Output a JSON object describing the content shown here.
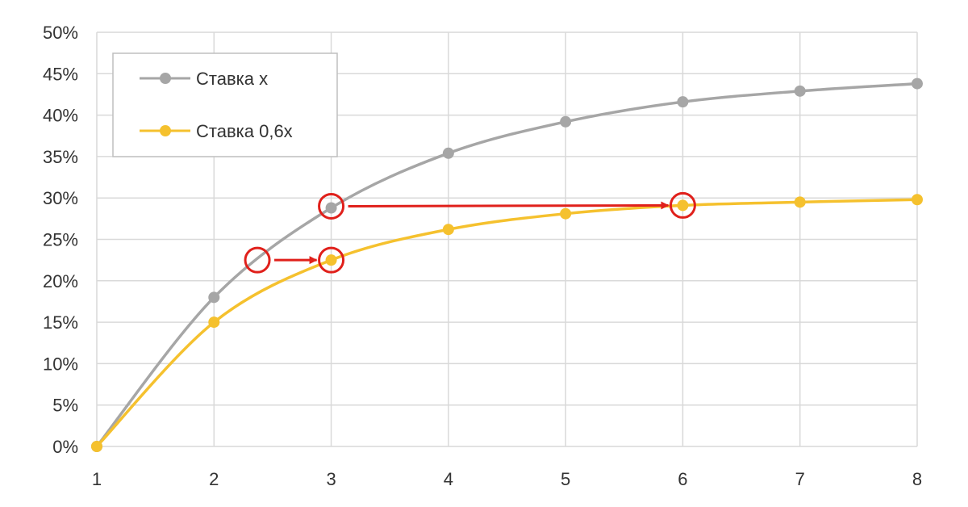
{
  "chart_data": {
    "type": "line",
    "x": [
      1,
      2,
      3,
      4,
      5,
      6,
      7,
      8
    ],
    "xlim": [
      1,
      8
    ],
    "ylim": [
      0,
      0.5
    ],
    "y_ticks": [
      "0%",
      "5%",
      "10%",
      "15%",
      "20%",
      "25%",
      "30%",
      "35%",
      "40%",
      "45%",
      "50%"
    ],
    "x_ticks": [
      "1",
      "2",
      "3",
      "4",
      "5",
      "6",
      "7",
      "8"
    ],
    "grid": true,
    "legend_position": "top-left",
    "series": [
      {
        "name": "Ставка x",
        "color": "#a6a6a6",
        "values": [
          0,
          0.18,
          0.288,
          0.354,
          0.392,
          0.416,
          0.429,
          0.438
        ]
      },
      {
        "name": "Ставка 0,6x",
        "color": "#f5c12e",
        "values": [
          0,
          0.15,
          0.225,
          0.262,
          0.281,
          0.291,
          0.295,
          0.298
        ]
      }
    ],
    "annotations": [
      {
        "type": "arrow",
        "color": "#e0201b",
        "from": {
          "x": 2.37,
          "y": 0.225
        },
        "to": {
          "x": 3,
          "y": 0.225
        }
      },
      {
        "type": "arrow",
        "color": "#e0201b",
        "from": {
          "x": 3,
          "y": 0.29
        },
        "to": {
          "x": 6,
          "y": 0.291
        }
      }
    ]
  }
}
